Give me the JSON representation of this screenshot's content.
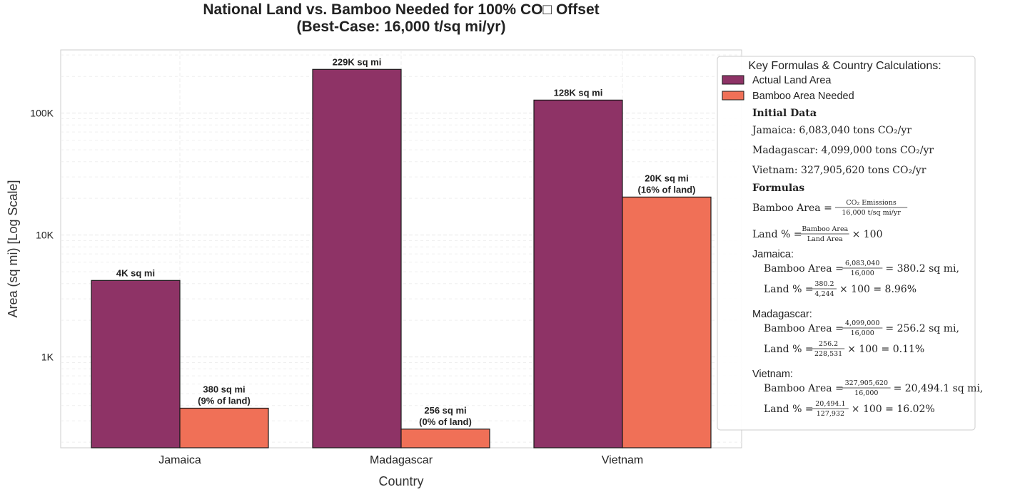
{
  "chart_data": {
    "type": "bar",
    "title_line1": "National Land vs. Bamboo Needed for 100% CO□ Offset",
    "title_line2": "(Best-Case: 16,000 t/sq mi/yr)",
    "xlabel": "Country",
    "ylabel": "Area (sq mi) [Log Scale]",
    "yscale": "log",
    "ylim": [
      180,
      330000
    ],
    "yticks": [
      1000,
      10000,
      100000
    ],
    "ytick_labels": [
      "1K",
      "10K",
      "100K"
    ],
    "grid": true,
    "categories": [
      "Jamaica",
      "Madagascar",
      "Vietnam"
    ],
    "series": [
      {
        "name": "Actual Land Area",
        "color": "#8e3366",
        "values": [
          4244,
          228531,
          127932
        ],
        "labels": [
          [
            "4K sq mi"
          ],
          [
            "229K sq mi"
          ],
          [
            "128K sq mi"
          ]
        ]
      },
      {
        "name": "Bamboo Area Needed",
        "color": "#f07057",
        "values": [
          380.2,
          256.2,
          20494.1
        ],
        "labels": [
          [
            "380 sq mi",
            "(9% of land)"
          ],
          [
            "256 sq mi",
            "(0% of land)"
          ],
          [
            "20K sq mi",
            "(16% of land)"
          ]
        ]
      }
    ],
    "legend": {
      "placement": "right",
      "title": "Key Formulas & Country Calculations:",
      "initial_data_heading": "Initial Data",
      "initial_data": [
        "Jamaica: 6,083,040 tons CO₂/yr",
        "Madagascar: 4,099,000 tons CO₂/yr",
        "Vietnam: 327,905,620 tons CO₂/yr"
      ],
      "formulas_heading": "Formulas",
      "formula_bamboo_prefix": "Bamboo Area =",
      "formula_bamboo_num": "CO₂ Emissions",
      "formula_bamboo_den": "16,000 t/sq mi/yr",
      "formula_land_prefix": "Land % =",
      "formula_land_num": "Bamboo Area",
      "formula_land_den": "Land Area",
      "formula_land_suffix": "× 100",
      "countries": [
        {
          "name": "Jamaica:",
          "bamboo_num": "6,083,040",
          "bamboo_den": "16,000",
          "bamboo_result": "= 380.2 sq mi,",
          "land_num": "380.2",
          "land_den": "4,244",
          "land_result": "× 100 = 8.96%"
        },
        {
          "name": "Madagascar:",
          "bamboo_num": "4,099,000",
          "bamboo_den": "16,000",
          "bamboo_result": "= 256.2 sq mi,",
          "land_num": "256.2",
          "land_den": "228,531",
          "land_result": "× 100 = 0.11%"
        },
        {
          "name": "Vietnam:",
          "bamboo_num": "327,905,620",
          "bamboo_den": "16,000",
          "bamboo_result": "= 20,494.1 sq mi,",
          "land_num": "20,494.1",
          "land_den": "127,932",
          "land_result": "× 100 = 16.02%"
        }
      ]
    }
  }
}
